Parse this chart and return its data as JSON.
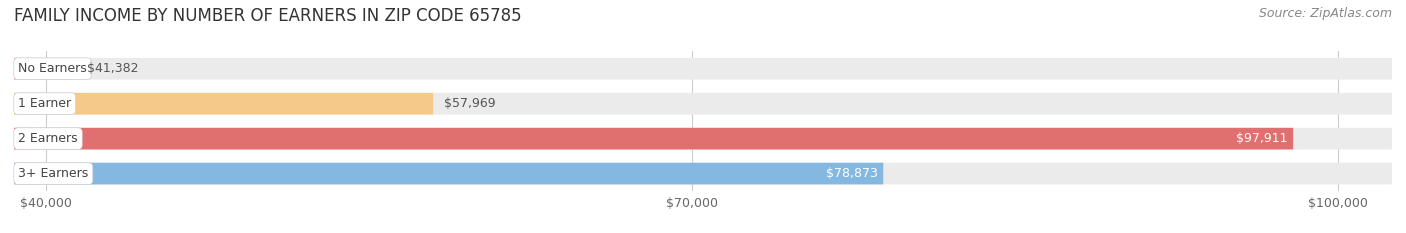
{
  "title": "FAMILY INCOME BY NUMBER OF EARNERS IN ZIP CODE 65785",
  "source_text": "Source: ZipAtlas.com",
  "categories": [
    "No Earners",
    "1 Earner",
    "2 Earners",
    "3+ Earners"
  ],
  "values": [
    41382,
    57969,
    97911,
    78873
  ],
  "bar_colors": [
    "#f4a0b5",
    "#f5c98a",
    "#e07070",
    "#85b8e0"
  ],
  "label_colors": [
    "#555555",
    "#555555",
    "#ffffff",
    "#ffffff"
  ],
  "background_color": "#ffffff",
  "bar_background_color": "#ebebeb",
  "xlim_min": 38500,
  "xlim_max": 102500,
  "xticks": [
    40000,
    70000,
    100000
  ],
  "xtick_labels": [
    "$40,000",
    "$70,000",
    "$100,000"
  ],
  "title_fontsize": 12,
  "source_fontsize": 9,
  "bar_height": 0.62,
  "figsize": [
    14.06,
    2.33
  ],
  "dpi": 100
}
